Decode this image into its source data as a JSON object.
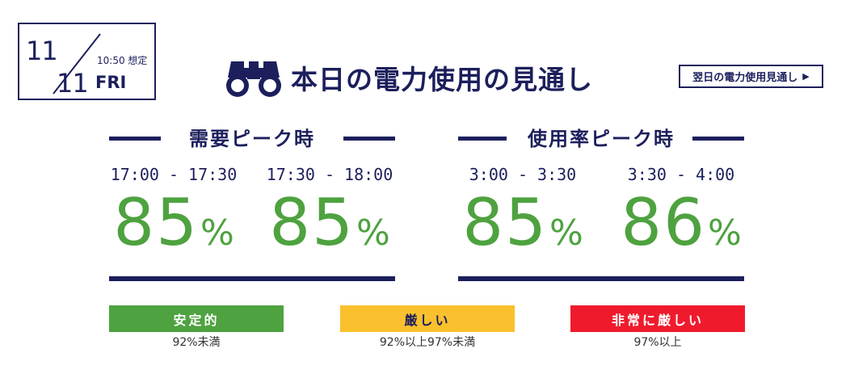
{
  "date": {
    "month": "11",
    "day": "11",
    "time": "10:50 想定",
    "weekday": "FRI"
  },
  "header": {
    "title": "本日の電力使用の見通し",
    "next_link": "翌日の電力使用見通し",
    "next_arrow": "▶"
  },
  "demand_peak": {
    "label": "需要ピーク時",
    "slots": [
      {
        "range": "17:00 - 17:30",
        "value": "85",
        "unit": "%"
      },
      {
        "range": "17:30 - 18:00",
        "value": "85",
        "unit": "%"
      }
    ]
  },
  "usage_peak": {
    "label": "使用率ピーク時",
    "slots": [
      {
        "range": "3:00 - 3:30",
        "value": "85",
        "unit": "%"
      },
      {
        "range": "3:30 - 4:00",
        "value": "86",
        "unit": "%"
      }
    ]
  },
  "legend": [
    {
      "label": "安定的",
      "desc": "92%未満",
      "color": "#4ea23f",
      "text_color": "#ffffff"
    },
    {
      "label": "厳しい",
      "desc": "92%以上97%未満",
      "color": "#fbc02d",
      "text_color": "#1c1f5c"
    },
    {
      "label": "非常に厳しい",
      "desc": "97%以上",
      "color": "#ef1b2d",
      "text_color": "#ffffff"
    }
  ],
  "colors": {
    "navy": "#1c1f5c",
    "green": "#4ea23f"
  },
  "icons": {
    "title_icon": "binoculars-icon"
  }
}
